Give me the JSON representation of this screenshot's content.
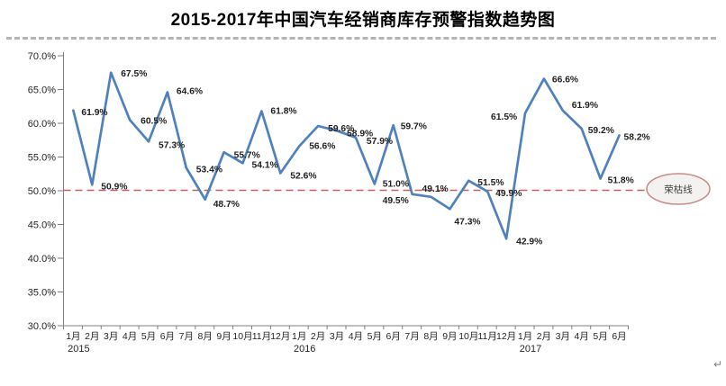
{
  "page": {
    "return_mark": "↵"
  },
  "chart_data": {
    "type": "line",
    "title": "2015-2017年中国汽车经销商库存预警指数趋势图",
    "categories": [
      "1月",
      "2月",
      "3月",
      "4月",
      "5月",
      "6月",
      "7月",
      "8月",
      "9月",
      "10月",
      "11月",
      "12月",
      "1月",
      "2月",
      "3月",
      "4月",
      "5月",
      "6月",
      "7月",
      "8月",
      "9月",
      "10月",
      "11月",
      "12月",
      "1月",
      "2月",
      "3月",
      "4月",
      "5月",
      "6月"
    ],
    "year_groups": [
      {
        "start_index": 0,
        "label": "2015"
      },
      {
        "start_index": 12,
        "label": "2016"
      },
      {
        "start_index": 24,
        "label": "2017"
      }
    ],
    "values": [
      61.9,
      50.9,
      67.5,
      60.5,
      57.3,
      64.6,
      53.4,
      48.7,
      55.7,
      54.1,
      61.8,
      52.6,
      56.6,
      59.6,
      58.9,
      57.9,
      51.0,
      59.7,
      49.5,
      49.1,
      47.3,
      51.5,
      49.9,
      42.9,
      61.5,
      66.6,
      61.9,
      59.2,
      51.8,
      58.2
    ],
    "data_label_suffix": "%",
    "ylim": [
      30,
      70
    ],
    "ytick_step": 5,
    "ytick_labels": [
      "30.0%",
      "35.0%",
      "40.0%",
      "45.0%",
      "50.0%",
      "55.0%",
      "60.0%",
      "65.0%",
      "70.0%"
    ],
    "xlabel": "",
    "ylabel": "",
    "grid": false,
    "legend": "none",
    "benchmark": {
      "value": 50.0,
      "label": "荣枯线"
    },
    "colors": {
      "line": "#4f81bd",
      "benchmark_line": "#c5615c",
      "ellipse_stroke": "#c88a86",
      "ellipse_fill": "#f4f2f1",
      "axis": "#808080",
      "text": "#262626",
      "data_label": "#1f1f1f"
    }
  }
}
